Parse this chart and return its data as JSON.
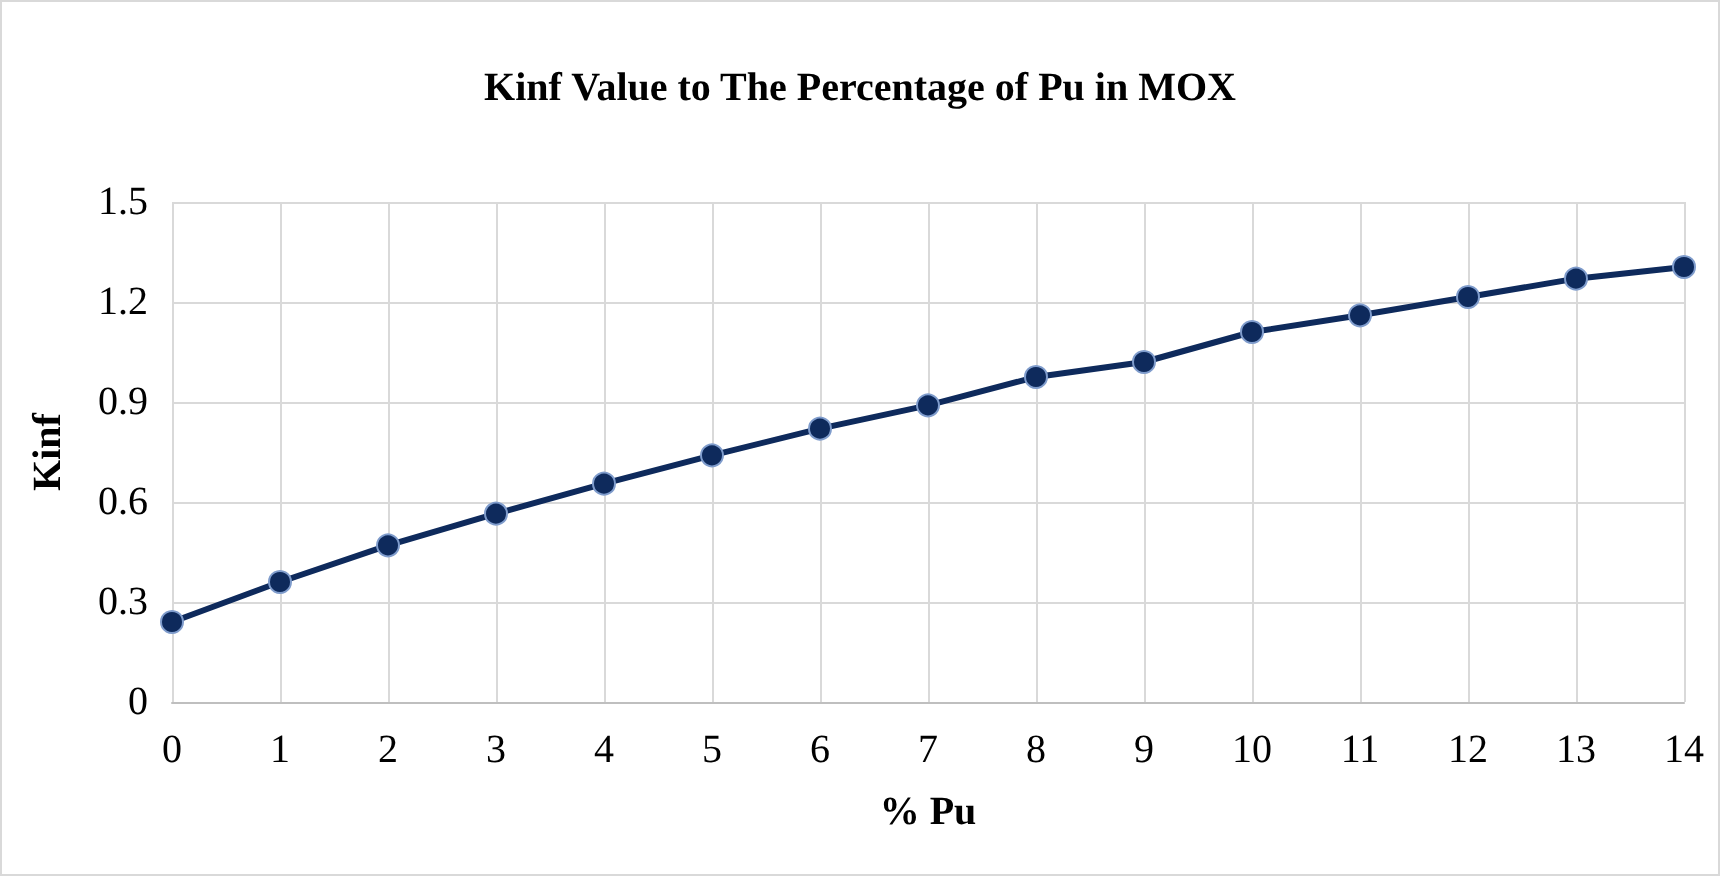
{
  "chart_data": {
    "type": "line",
    "title": "Kinf Value to The Percentage of Pu in MOX",
    "xlabel": "% Pu",
    "ylabel": "Kinf",
    "x": [
      0,
      1,
      2,
      3,
      4,
      5,
      6,
      7,
      8,
      9,
      10,
      11,
      12,
      13,
      14
    ],
    "series": [
      {
        "color": "#0e2a5c",
        "values": [
          0.24,
          0.36,
          0.47,
          0.565,
          0.655,
          0.74,
          0.82,
          0.89,
          0.975,
          1.02,
          1.11,
          1.16,
          1.215,
          1.27,
          1.305
        ]
      }
    ],
    "xlim": [
      0,
      14
    ],
    "xticks": [
      0,
      1,
      2,
      3,
      4,
      5,
      6,
      7,
      8,
      9,
      10,
      11,
      12,
      13,
      14
    ],
    "ylim": [
      0,
      1.5
    ],
    "yticks": [
      0,
      0.3,
      0.6,
      0.9,
      1.2,
      1.5
    ],
    "grid": true,
    "marker": "circle",
    "line_style": "solid"
  }
}
